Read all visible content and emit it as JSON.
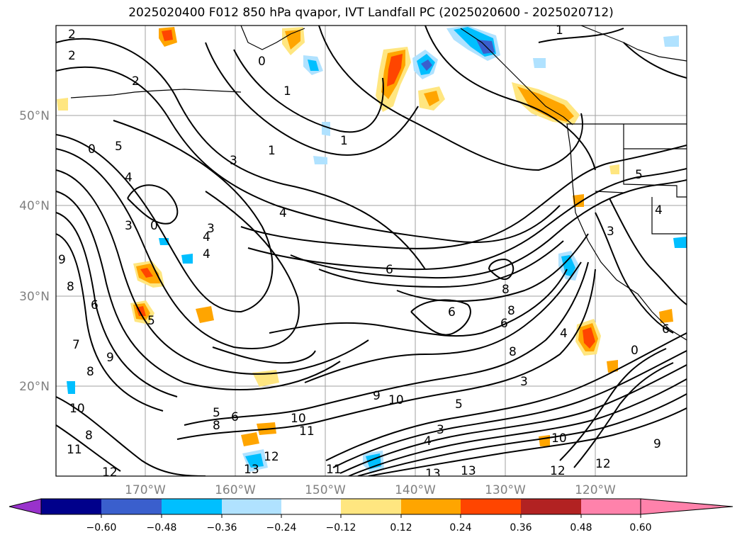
{
  "title": "2025020400 F012 850 hPa qvapor, IVT Landfall PC (2025020600 - 2025020712)",
  "axes": {
    "lat_ticks": [
      "50°N",
      "40°N",
      "30°N",
      "20°N"
    ],
    "lon_ticks": [
      "170°W",
      "160°W",
      "150°W",
      "140°W",
      "130°W",
      "120°W"
    ]
  },
  "colorbar": {
    "tick_labels": [
      "−0.60",
      "−0.48",
      "−0.36",
      "−0.24",
      "−0.12",
      "0.12",
      "0.24",
      "0.36",
      "0.48",
      "0.60"
    ],
    "colors": [
      "#9932cc",
      "#00008b",
      "#3a5fcd",
      "#00bfff",
      "#b0e2ff",
      "#ffffff",
      "#ffe680",
      "#ffa500",
      "#ff4500",
      "#b22222",
      "#ff82ab"
    ]
  },
  "contour_labels": [
    "2",
    "2",
    "0",
    "1",
    "2",
    "1",
    "3",
    "1",
    "4",
    "6",
    "6",
    "8",
    "4",
    "3",
    "5",
    "4",
    "0",
    "3",
    "0",
    "4",
    "5",
    "9",
    "8",
    "9",
    "6",
    "7",
    "8",
    "10",
    "8",
    "11",
    "12",
    "12",
    "13",
    "5",
    "6",
    "8",
    "11",
    "10",
    "9",
    "10",
    "5",
    "4",
    "3",
    "13",
    "13",
    "12",
    "10",
    "11",
    "12",
    "9",
    "8",
    "6",
    "8",
    "4",
    "0",
    "3",
    "5",
    "4",
    "3",
    "6",
    "1"
  ]
}
